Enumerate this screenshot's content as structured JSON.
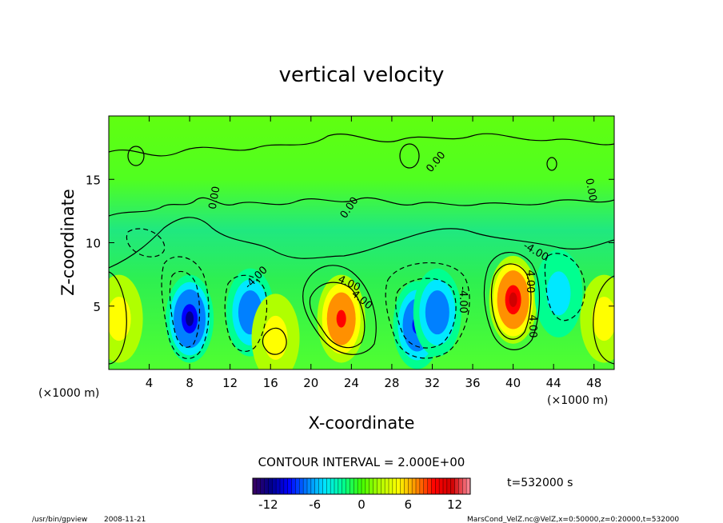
{
  "chart_data": {
    "type": "heatmap",
    "title": "vertical velocity",
    "xlabel": "X-coordinate",
    "ylabel": "Z-coordinate",
    "x_unit": "(×1000 m)",
    "y_unit": "(×1000 m)",
    "xlim": [
      0,
      50
    ],
    "ylim": [
      0,
      20
    ],
    "x_ticks": [
      4,
      8,
      12,
      16,
      20,
      24,
      28,
      32,
      36,
      40,
      44,
      48
    ],
    "y_ticks": [
      5,
      10,
      15
    ],
    "contour_interval_text": "CONTOUR INTERVAL = 2.000E+00",
    "contour_labels": [
      "0.00",
      "0.00",
      "0.00",
      "0.00",
      "4.00",
      "4.00",
      "4.00",
      "-4.00",
      "-4.00",
      "4.00",
      "-4.00"
    ],
    "colorbar": {
      "min": -14,
      "max": 14,
      "ticks": [
        -12,
        -6,
        0,
        6,
        12
      ],
      "colormap": [
        "#3a0060",
        "#00008c",
        "#0000ff",
        "#0080ff",
        "#00e8ff",
        "#00ff90",
        "#40ff00",
        "#b0ff00",
        "#ffff00",
        "#ff9000",
        "#ff0000",
        "#d00000",
        "#ff90a0"
      ]
    },
    "cells": [
      {
        "x": 1,
        "z": 4,
        "w": 4.0
      },
      {
        "x": 49,
        "z": 4,
        "w": 4.5
      },
      {
        "x": 8,
        "z": 4,
        "w": -11.0
      },
      {
        "x": 14,
        "z": 4.5,
        "w": -8.5
      },
      {
        "x": 16.5,
        "z": 2.5,
        "w": 3.0
      },
      {
        "x": 23,
        "z": 4,
        "w": 9.5
      },
      {
        "x": 30.5,
        "z": 3.5,
        "w": -9.5
      },
      {
        "x": 32.5,
        "z": 4.5,
        "w": -8.0
      },
      {
        "x": 40,
        "z": 5.5,
        "w": 11.5
      },
      {
        "x": 44.5,
        "z": 6,
        "w": -4.0
      }
    ],
    "time_label": "t=532000 s"
  },
  "footer": {
    "program": "/usr/bin/gpview",
    "date": "2008-11-21",
    "source": "MarsCond_VelZ.nc@VelZ,x=0:50000,z=0:20000,t=532000"
  }
}
